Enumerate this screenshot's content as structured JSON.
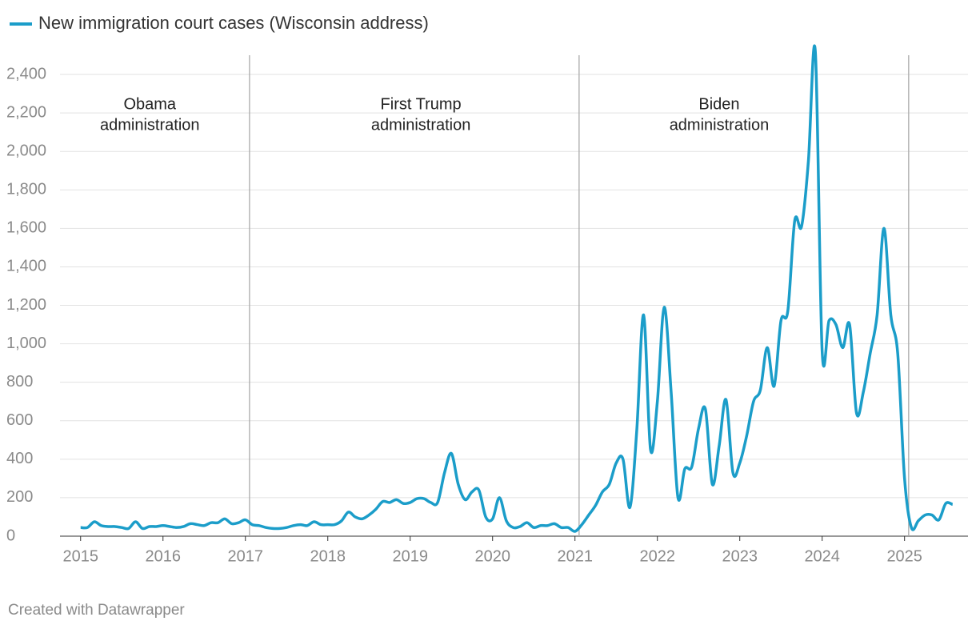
{
  "chart_data": {
    "type": "line",
    "series": [
      {
        "name": "New immigration court cases (Wisconsin address)",
        "color": "#1b9dc9",
        "values": [
          45,
          45,
          75,
          55,
          50,
          50,
          45,
          40,
          75,
          40,
          50,
          50,
          55,
          50,
          45,
          50,
          65,
          60,
          55,
          70,
          70,
          90,
          65,
          70,
          85,
          60,
          55,
          45,
          40,
          40,
          45,
          55,
          60,
          55,
          75,
          60,
          60,
          60,
          80,
          125,
          100,
          90,
          110,
          140,
          180,
          175,
          190,
          170,
          175,
          195,
          195,
          175,
          175,
          330,
          430,
          270,
          190,
          230,
          240,
          100,
          90,
          200,
          80,
          45,
          50,
          70,
          45,
          55,
          55,
          65,
          45,
          45,
          25,
          60,
          110,
          160,
          230,
          270,
          380,
          400,
          150,
          550,
          1150,
          450,
          700,
          1190,
          750,
          200,
          350,
          360,
          560,
          660,
          270,
          470,
          710,
          330,
          380,
          520,
          700,
          760,
          980,
          780,
          1120,
          1170,
          1640,
          1610,
          1950,
          2520,
          960,
          1120,
          1100,
          980,
          1100,
          640,
          750,
          950,
          1150,
          1600,
          1150,
          950,
          300,
          45,
          80,
          110,
          110,
          85,
          170,
          165
        ]
      }
    ],
    "x": [
      2015,
      2015.083,
      2015.167,
      2015.25,
      2015.333,
      2015.417,
      2015.5,
      2015.583,
      2015.667,
      2015.75,
      2015.833,
      2015.917,
      2016,
      2016.083,
      2016.167,
      2016.25,
      2016.333,
      2016.417,
      2016.5,
      2016.583,
      2016.667,
      2016.75,
      2016.833,
      2016.917,
      2017,
      2017.083,
      2017.167,
      2017.25,
      2017.333,
      2017.417,
      2017.5,
      2017.583,
      2017.667,
      2017.75,
      2017.833,
      2017.917,
      2018,
      2018.083,
      2018.167,
      2018.25,
      2018.333,
      2018.417,
      2018.5,
      2018.583,
      2018.667,
      2018.75,
      2018.833,
      2018.917,
      2019,
      2019.083,
      2019.167,
      2019.25,
      2019.333,
      2019.417,
      2019.5,
      2019.583,
      2019.667,
      2019.75,
      2019.833,
      2019.917,
      2020,
      2020.083,
      2020.167,
      2020.25,
      2020.333,
      2020.417,
      2020.5,
      2020.583,
      2020.667,
      2020.75,
      2020.833,
      2020.917,
      2021,
      2021.083,
      2021.167,
      2021.25,
      2021.333,
      2021.417,
      2021.5,
      2021.583,
      2021.667,
      2021.75,
      2021.833,
      2021.917,
      2022,
      2022.083,
      2022.167,
      2022.25,
      2022.333,
      2022.417,
      2022.5,
      2022.583,
      2022.667,
      2022.75,
      2022.833,
      2022.917,
      2023,
      2023.083,
      2023.167,
      2023.25,
      2023.333,
      2023.417,
      2023.5,
      2023.583,
      2023.667,
      2023.75,
      2023.833,
      2023.917,
      2024,
      2024.083,
      2024.167,
      2024.25,
      2024.333,
      2024.417,
      2024.5,
      2024.583,
      2024.667,
      2024.75,
      2024.833,
      2024.917,
      2025,
      2025.083,
      2025.167,
      2025.25,
      2025.333,
      2025.417,
      2025.5,
      2025.583
    ],
    "xlim": [
      2014.75,
      2025.77
    ],
    "xticks": [
      2015,
      2016,
      2017,
      2018,
      2019,
      2020,
      2021,
      2022,
      2023,
      2024,
      2025
    ],
    "ylim": [
      0,
      2500
    ],
    "yticks": [
      0,
      200,
      400,
      600,
      800,
      {
        "value": 1000,
        "label": "1,000"
      },
      {
        "value": 1200,
        "label": "1,200"
      },
      {
        "value": 1400,
        "label": "1,400"
      },
      {
        "value": 1600,
        "label": "1,600"
      },
      {
        "value": 1800,
        "label": "1,800"
      },
      {
        "value": 2000,
        "label": "2,000"
      },
      {
        "value": 2200,
        "label": "2,200"
      },
      {
        "value": 2400,
        "label": "2,400"
      }
    ],
    "grid": true,
    "vlines": [
      2017.05,
      2021.05,
      2025.05
    ],
    "annotations": [
      {
        "x": 2015.84,
        "text": [
          "Obama",
          "administration"
        ]
      },
      {
        "x": 2019.13,
        "text": [
          "First Trump",
          "administration"
        ]
      },
      {
        "x": 2022.75,
        "text": [
          "Biden",
          "administration"
        ]
      }
    ],
    "footer": "Created with Datawrapper"
  }
}
